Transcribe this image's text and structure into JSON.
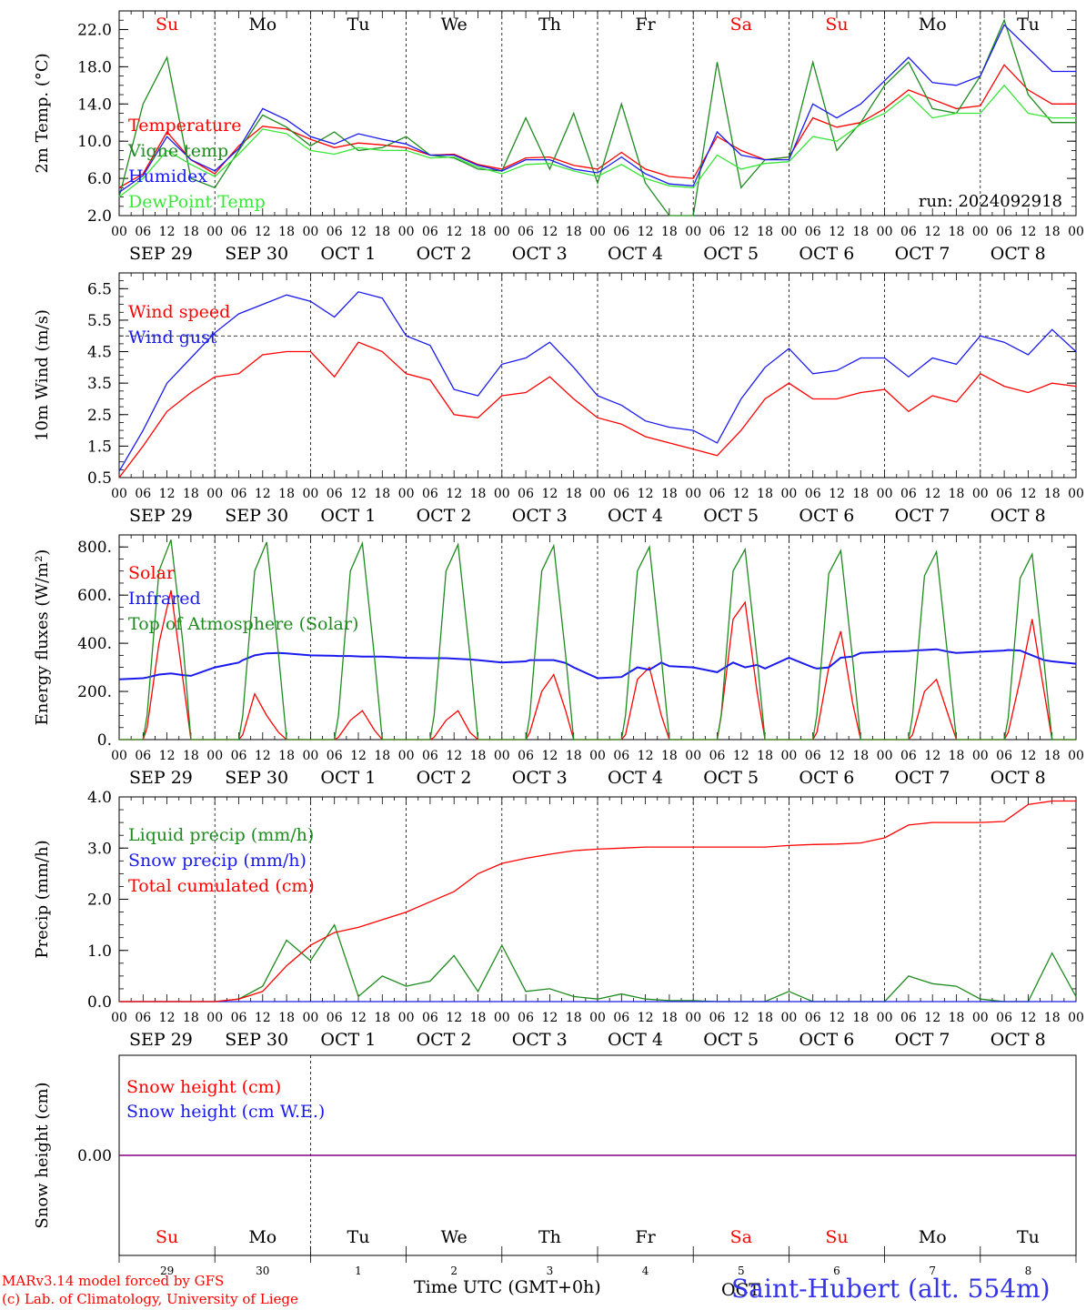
{
  "colors": {
    "red": "#ff0000",
    "darkgreen": "#1f8a1f",
    "blue": "#1a1aee",
    "lightgreen": "#39e639",
    "purple": "#800080"
  },
  "days_of_week": [
    {
      "label": "Su",
      "weekend": true
    },
    {
      "label": "Mo",
      "weekend": false
    },
    {
      "label": "Tu",
      "weekend": false
    },
    {
      "label": "We",
      "weekend": false
    },
    {
      "label": "Th",
      "weekend": false
    },
    {
      "label": "Fr",
      "weekend": false
    },
    {
      "label": "Sa",
      "weekend": true
    },
    {
      "label": "Su",
      "weekend": true
    },
    {
      "label": "Mo",
      "weekend": false
    },
    {
      "label": "Tu",
      "weekend": false
    }
  ],
  "day_numbers": [
    "29",
    "30",
    "1",
    "2",
    "3",
    "4",
    "5",
    "6",
    "7",
    "8"
  ],
  "date_labels": [
    "SEP 29",
    "SEP 30",
    "OCT  1",
    "OCT  2",
    "OCT  3",
    "OCT  4",
    "OCT  5",
    "OCT  6",
    "OCT  7",
    "OCT  8"
  ],
  "hour_ticks": [
    "00",
    "06",
    "12",
    "18"
  ],
  "footer": {
    "model": "MARv3.14 model forced by GFS",
    "copyright": "(c) Lab. of Climatology, University of Liege",
    "time_axis": "Time UTC (GMT+0h)",
    "station": "Saint-Hubert (alt. 554m)",
    "stray_text": "OCT"
  },
  "chart_data": [
    {
      "type": "line",
      "ylabel": "2m Temp. (°C)",
      "ylim": [
        2,
        24
      ],
      "yticks": [
        "2.0",
        "6.0",
        "10.0",
        "14.0",
        "18.0",
        "22.0"
      ],
      "annotation": "run: 2024092918",
      "x_hours": [
        0,
        6,
        12,
        18,
        24,
        30,
        36,
        42,
        48,
        54,
        60,
        66,
        72,
        78,
        84,
        90,
        96,
        102,
        108,
        114,
        120,
        126,
        132,
        138,
        144,
        150,
        156,
        162,
        168,
        174,
        180,
        186,
        192,
        198,
        204,
        210,
        216,
        222,
        228,
        234,
        240
      ],
      "series": [
        {
          "name": "Temperature",
          "color": "red",
          "values": [
            5.0,
            6.5,
            11.0,
            8.0,
            6.5,
            9.5,
            11.6,
            11.3,
            10.2,
            9.3,
            9.8,
            9.6,
            9.3,
            8.5,
            8.6,
            7.5,
            7.0,
            8.2,
            8.3,
            7.4,
            7.0,
            8.8,
            7.0,
            6.2,
            6.0,
            10.5,
            9.0,
            8.0,
            8.3,
            12.5,
            11.5,
            12.0,
            13.5,
            15.5,
            14.5,
            13.5,
            13.8,
            18.2,
            15.5,
            14.0,
            14.0
          ]
        },
        {
          "name": "Vigne temp",
          "color": "darkgreen",
          "values": [
            4.0,
            14.0,
            19.0,
            6.0,
            5.0,
            9.0,
            12.8,
            11.5,
            9.5,
            11.0,
            9.0,
            9.3,
            10.5,
            8.5,
            8.2,
            7.0,
            6.8,
            12.5,
            7.0,
            13.0,
            5.5,
            14.0,
            5.5,
            1.8,
            1.5,
            18.5,
            5.0,
            8.0,
            8.3,
            18.5,
            9.0,
            12.0,
            16.0,
            18.5,
            13.5,
            13.0,
            17.0,
            23.0,
            15.0,
            12.0,
            12.0
          ]
        },
        {
          "name": "Humidex",
          "color": "blue",
          "values": [
            4.5,
            6.3,
            10.5,
            8.0,
            6.8,
            9.2,
            13.5,
            12.3,
            10.5,
            9.7,
            10.8,
            10.2,
            9.7,
            8.5,
            8.5,
            7.4,
            6.8,
            8.0,
            8.0,
            7.0,
            6.6,
            8.3,
            6.5,
            5.4,
            5.2,
            11.0,
            8.5,
            8.0,
            8.0,
            14.0,
            12.5,
            14.0,
            16.5,
            19.0,
            16.3,
            16.0,
            17.0,
            22.5,
            20.0,
            17.5,
            17.5
          ]
        },
        {
          "name": "DewPoint Temp",
          "color": "lightgreen",
          "values": [
            4.0,
            6.0,
            9.0,
            7.5,
            6.2,
            8.6,
            11.3,
            10.8,
            9.0,
            8.6,
            9.3,
            9.0,
            9.0,
            8.2,
            8.3,
            7.2,
            6.5,
            7.5,
            7.6,
            6.8,
            6.2,
            7.5,
            6.0,
            5.2,
            5.0,
            8.5,
            7.0,
            7.6,
            7.8,
            10.5,
            10.0,
            11.8,
            13.0,
            15.0,
            12.5,
            13.0,
            13.0,
            16.0,
            13.0,
            12.5,
            12.5
          ]
        }
      ]
    },
    {
      "type": "line",
      "ylabel": "10m Wind (m/s)",
      "ylim": [
        0.5,
        7.0
      ],
      "yticks": [
        "0.5",
        "1.5",
        "2.5",
        "3.5",
        "4.5",
        "5.5",
        "6.5"
      ],
      "reference_line": 5.0,
      "x_hours": [
        0,
        6,
        12,
        18,
        24,
        30,
        36,
        42,
        48,
        54,
        60,
        66,
        72,
        78,
        84,
        90,
        96,
        102,
        108,
        114,
        120,
        126,
        132,
        138,
        144,
        150,
        156,
        162,
        168,
        174,
        180,
        186,
        192,
        198,
        204,
        210,
        216,
        222,
        228,
        234,
        240
      ],
      "series": [
        {
          "name": "Wind speed",
          "color": "red",
          "values": [
            0.5,
            1.5,
            2.6,
            3.2,
            3.7,
            3.8,
            4.4,
            4.5,
            4.5,
            3.7,
            4.8,
            4.5,
            3.8,
            3.6,
            2.5,
            2.4,
            3.1,
            3.2,
            3.7,
            3.0,
            2.4,
            2.2,
            1.8,
            1.6,
            1.4,
            1.2,
            2.0,
            3.0,
            3.5,
            3.0,
            3.0,
            3.2,
            3.3,
            2.6,
            3.1,
            2.9,
            3.8,
            3.4,
            3.2,
            3.5,
            3.4
          ]
        },
        {
          "name": "Wind gust",
          "color": "blue",
          "values": [
            0.7,
            2.0,
            3.5,
            4.3,
            5.1,
            5.7,
            6.0,
            6.3,
            6.1,
            5.6,
            6.4,
            6.2,
            5.0,
            4.7,
            3.3,
            3.1,
            4.1,
            4.3,
            4.8,
            4.0,
            3.1,
            2.8,
            2.3,
            2.1,
            2.0,
            1.6,
            3.0,
            4.0,
            4.6,
            3.8,
            3.9,
            4.3,
            4.3,
            3.7,
            4.3,
            4.1,
            5.0,
            4.8,
            4.4,
            5.2,
            4.5
          ]
        }
      ]
    },
    {
      "type": "line",
      "ylabel": "Energy fluxes (W/m²)",
      "ylim": [
        0,
        850
      ],
      "yticks": [
        "0.",
        "200.",
        "400.",
        "600.",
        "800."
      ],
      "x_hours": [
        0,
        6,
        7,
        10,
        13,
        16,
        18,
        24,
        30,
        31,
        34,
        37,
        40,
        42,
        48,
        54,
        55,
        58,
        61,
        64,
        66,
        72,
        78,
        79,
        82,
        85,
        88,
        90,
        96,
        102,
        103,
        106,
        109,
        112,
        114,
        120,
        126,
        127,
        130,
        133,
        136,
        138,
        144,
        150,
        151,
        154,
        157,
        160,
        162,
        168,
        174,
        175,
        178,
        181,
        184,
        186,
        192,
        198,
        199,
        202,
        205,
        208,
        210,
        216,
        222,
        223,
        226,
        229,
        232,
        234,
        240
      ],
      "series": [
        {
          "name": "Solar",
          "color": "red",
          "values": [
            0,
            0,
            50,
            400,
            620,
            250,
            0,
            0,
            0,
            20,
            190,
            100,
            30,
            0,
            0,
            0,
            10,
            80,
            120,
            40,
            0,
            0,
            0,
            10,
            80,
            120,
            30,
            0,
            0,
            0,
            30,
            200,
            270,
            120,
            0,
            0,
            0,
            20,
            250,
            300,
            100,
            0,
            0,
            0,
            100,
            500,
            570,
            200,
            0,
            0,
            0,
            30,
            300,
            450,
            150,
            0,
            0,
            0,
            20,
            200,
            250,
            100,
            0,
            0,
            0,
            30,
            250,
            500,
            200,
            0,
            0
          ]
        },
        {
          "name": "Infrared",
          "color": "blue",
          "values": [
            250,
            255,
            258,
            270,
            275,
            268,
            265,
            300,
            320,
            330,
            350,
            358,
            360,
            358,
            350,
            348,
            347,
            347,
            345,
            345,
            345,
            340,
            338,
            338,
            338,
            335,
            333,
            330,
            320,
            325,
            330,
            330,
            330,
            318,
            300,
            255,
            260,
            270,
            300,
            290,
            320,
            305,
            300,
            280,
            290,
            320,
            300,
            310,
            295,
            340,
            300,
            295,
            300,
            340,
            345,
            360,
            365,
            368,
            370,
            372,
            375,
            365,
            360,
            365,
            370,
            372,
            370,
            350,
            330,
            325,
            315
          ]
        },
        {
          "name": "Top of Atmosphere (Solar)",
          "color": "darkgreen",
          "values": [
            0,
            0,
            100,
            700,
            830,
            400,
            0,
            0,
            0,
            100,
            700,
            820,
            350,
            0,
            0,
            0,
            100,
            700,
            815,
            350,
            0,
            0,
            0,
            100,
            700,
            810,
            350,
            0,
            0,
            0,
            100,
            700,
            805,
            350,
            0,
            0,
            0,
            100,
            700,
            800,
            340,
            0,
            0,
            0,
            100,
            700,
            790,
            340,
            0,
            0,
            0,
            100,
            690,
            785,
            330,
            0,
            0,
            0,
            100,
            680,
            780,
            320,
            0,
            0,
            0,
            90,
            670,
            770,
            320,
            0,
            0
          ]
        }
      ]
    },
    {
      "type": "line",
      "ylabel": "Precip (mm/h)",
      "ylim": [
        0,
        4.0
      ],
      "yticks": [
        "0.0",
        "1.0",
        "2.0",
        "3.0",
        "4.0"
      ],
      "x_hours": [
        0,
        6,
        12,
        18,
        24,
        30,
        36,
        42,
        48,
        54,
        60,
        66,
        72,
        78,
        84,
        90,
        96,
        102,
        108,
        114,
        120,
        126,
        132,
        138,
        144,
        150,
        156,
        162,
        168,
        174,
        180,
        186,
        192,
        198,
        204,
        210,
        216,
        222,
        228,
        234,
        240
      ],
      "series": [
        {
          "name": "Liquid precip (mm/h)",
          "color": "darkgreen",
          "values": [
            0,
            0,
            0,
            0,
            0,
            0.05,
            0.3,
            1.2,
            0.8,
            1.5,
            0.1,
            0.5,
            0.3,
            0.4,
            0.9,
            0.2,
            1.1,
            0.2,
            0.25,
            0.1,
            0.05,
            0.15,
            0.05,
            0.02,
            0.02,
            0,
            0,
            0,
            0.2,
            0,
            0,
            0,
            0,
            0.5,
            0.35,
            0.3,
            0.05,
            0,
            0,
            0.95,
            0.1
          ]
        },
        {
          "name": "Snow precip (mm/h)",
          "color": "blue",
          "values": [
            0,
            0,
            0,
            0,
            0,
            0,
            0,
            0,
            0,
            0,
            0,
            0,
            0,
            0,
            0,
            0,
            0,
            0,
            0,
            0,
            0,
            0,
            0,
            0,
            0,
            0,
            0,
            0,
            0,
            0,
            0,
            0,
            0,
            0,
            0,
            0,
            0,
            0,
            0,
            0,
            0
          ]
        },
        {
          "name": "Total cumulated (cm)",
          "color": "red",
          "values": [
            0,
            0,
            0,
            0,
            0,
            0.05,
            0.2,
            0.7,
            1.1,
            1.35,
            1.45,
            1.6,
            1.75,
            1.95,
            2.15,
            2.5,
            2.7,
            2.8,
            2.88,
            2.95,
            2.98,
            3.0,
            3.02,
            3.02,
            3.02,
            3.02,
            3.02,
            3.02,
            3.05,
            3.07,
            3.08,
            3.1,
            3.2,
            3.45,
            3.5,
            3.5,
            3.5,
            3.52,
            3.85,
            3.92,
            3.92
          ]
        }
      ]
    },
    {
      "type": "line",
      "ylabel": "Snow height (cm)",
      "yticks": [
        "0.00"
      ],
      "x_hours": [
        0,
        240
      ],
      "series": [
        {
          "name": "Snow height (cm)",
          "color": "red",
          "values": [
            0,
            0
          ]
        },
        {
          "name": "Snow height (cm W.E.)",
          "color": "blue",
          "values": [
            0,
            0
          ]
        }
      ]
    }
  ]
}
